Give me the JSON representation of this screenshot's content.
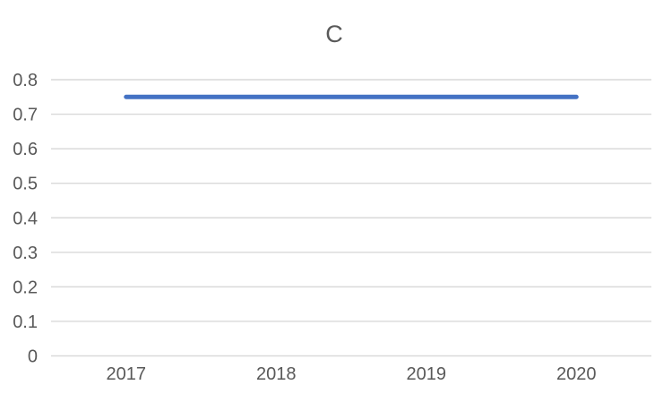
{
  "chart": {
    "title": "C"
  },
  "chart_data": {
    "type": "line",
    "title": "C",
    "categories": [
      "2017",
      "2018",
      "2019",
      "2020"
    ],
    "series": [
      {
        "values": [
          0.75,
          0.75,
          0.75,
          0.75
        ],
        "color": "#4472C4"
      }
    ],
    "ylim": [
      0,
      0.8
    ],
    "ytick_labels": [
      "0",
      "0.1",
      "0.2",
      "0.3",
      "0.4",
      "0.5",
      "0.6",
      "0.7",
      "0.8"
    ],
    "grid": true,
    "legend": false,
    "colors": {
      "series": "#4472C4",
      "gridline": "#d9d9d9",
      "axis_text": "#595959",
      "title_text": "#595959",
      "background": "#ffffff"
    }
  }
}
